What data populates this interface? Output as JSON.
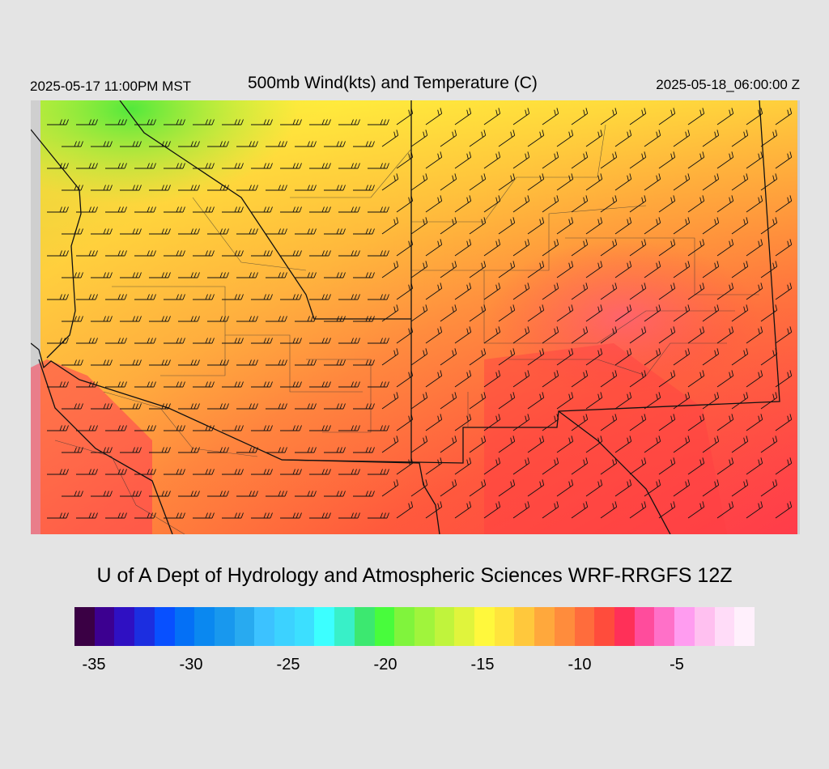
{
  "header": {
    "local_time": "2025-05-17 11:00PM MST",
    "title": "500mb Wind(kts) and Temperature (C)",
    "valid_time": "2025-05-18_06:00:00 Z"
  },
  "footer": {
    "credit": "U of A Dept of Hydrology and Atmospheric Sciences WRF-RRGFS 12Z"
  },
  "colorbar": {
    "colors": [
      "#3a0044",
      "#3c0090",
      "#2f10c2",
      "#1c2ee0",
      "#0850ff",
      "#0470f6",
      "#0a88f0",
      "#1898ee",
      "#28aaf0",
      "#3cc2ff",
      "#3cd2ff",
      "#3cdfff",
      "#3cffff",
      "#38f0c8",
      "#3ce870",
      "#48fc3c",
      "#80f43c",
      "#a0f43c",
      "#c0f43c",
      "#e0f43c",
      "#fff83c",
      "#ffe43c",
      "#ffc83c",
      "#ffa83c",
      "#ff8c3c",
      "#ff6c3c",
      "#ff4c3c",
      "#ff3058",
      "#ff4c9c",
      "#ff70c8",
      "#ff9cf0",
      "#ffc0f0",
      "#ffdcf8",
      "#fff0fc"
    ],
    "ticks": [
      "-35",
      "-30",
      "-25",
      "-20",
      "-15",
      "-10",
      "-5"
    ],
    "tick_values": [
      -35,
      -30,
      -25,
      -20,
      -15,
      -10,
      -5
    ],
    "value_min": -36,
    "value_max": -1
  },
  "map": {
    "field": "500mb temperature (C) with wind barbs (kts)",
    "temperature_range_shown": [
      -21,
      -4
    ]
  }
}
